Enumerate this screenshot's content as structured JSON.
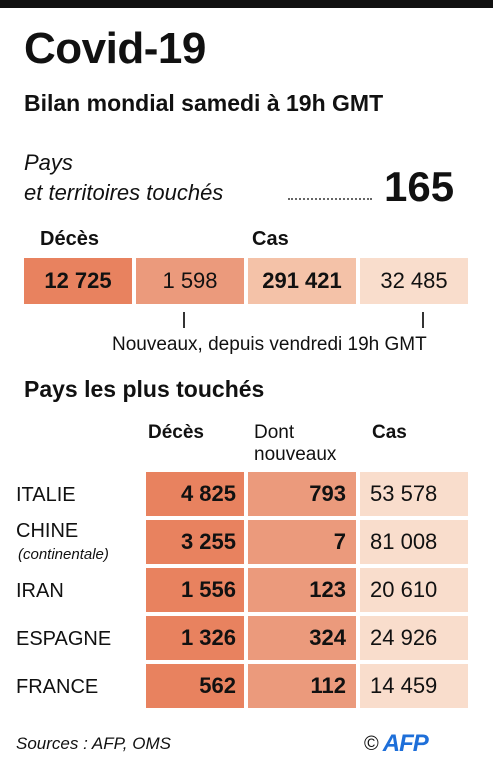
{
  "colors": {
    "deaths_strong": "#e8825f",
    "deaths_medium": "#eb9a7c",
    "cases_medium": "#f4c2a8",
    "cases_light": "#f9ddcc",
    "afp_blue": "#1e6fd9"
  },
  "header": {
    "title": "Covid-19",
    "subtitle": "Bilan mondial samedi à 19h GMT"
  },
  "pays": {
    "label_line1": "Pays",
    "label_line2": "et territoires touchés",
    "count": "165"
  },
  "summary": {
    "deces_label": "Décès",
    "cas_label": "Cas",
    "deces_total": "12 725",
    "deces_new": "1 598",
    "cas_total": "291 421",
    "cas_new": "32 485",
    "new_note": "Nouveaux, depuis vendredi 19h GMT"
  },
  "table": {
    "section_title": "Pays les plus touchés",
    "col_deces": "Décès",
    "col_nouveaux_line1": "Dont",
    "col_nouveaux_line2": "nouveaux",
    "col_cas": "Cas",
    "rows": [
      {
        "country": "ITALIE",
        "sub": "",
        "deces": "4 825",
        "nouveaux": "793",
        "cas": "53 578"
      },
      {
        "country": "CHINE",
        "sub": "(continentale)",
        "deces": "3 255",
        "nouveaux": "7",
        "cas": "81 008"
      },
      {
        "country": "IRAN",
        "sub": "",
        "deces": "1 556",
        "nouveaux": "123",
        "cas": "20 610"
      },
      {
        "country": "ESPAGNE",
        "sub": "",
        "deces": "1 326",
        "nouveaux": "324",
        "cas": "24 926"
      },
      {
        "country": "FRANCE",
        "sub": "",
        "deces": "562",
        "nouveaux": "112",
        "cas": "14 459"
      }
    ]
  },
  "footer": {
    "sources": "Sources : AFP, OMS",
    "copyright": "©",
    "logo": "AFP"
  }
}
